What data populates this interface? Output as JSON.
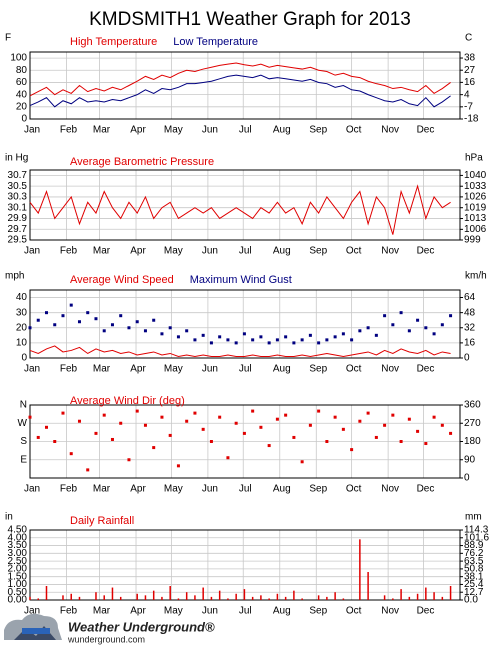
{
  "title": "KMDSMITH1 Weather Graph for 2013",
  "footer": {
    "brand": "Weather Underground®",
    "url": "wunderground.com"
  },
  "chart_data": [
    {
      "type": "line",
      "ylabel": "F",
      "y2label": "C",
      "x": [
        1,
        8,
        15,
        22,
        29,
        36,
        43,
        50,
        57,
        64,
        71,
        78,
        85,
        92,
        99,
        106,
        113,
        120,
        127,
        134,
        141,
        148,
        155,
        162,
        169,
        176,
        183,
        190,
        197,
        204,
        211,
        218,
        225,
        232,
        239,
        246,
        253,
        260,
        267,
        274,
        281,
        288,
        295,
        302,
        309,
        316,
        323,
        330,
        337,
        344,
        351,
        358
      ],
      "xlim": [
        1,
        366
      ],
      "xticks": [
        {
          "value": 1,
          "label": "Jan"
        },
        {
          "value": 32,
          "label": "Feb"
        },
        {
          "value": 60,
          "label": "Mar"
        },
        {
          "value": 91,
          "label": "Apr"
        },
        {
          "value": 121,
          "label": "May"
        },
        {
          "value": 152,
          "label": "Jun"
        },
        {
          "value": 182,
          "label": "Jul"
        },
        {
          "value": 213,
          "label": "Aug"
        },
        {
          "value": 244,
          "label": "Sep"
        },
        {
          "value": 274,
          "label": "Oct"
        },
        {
          "value": 305,
          "label": "Nov"
        },
        {
          "value": 335,
          "label": "Dec"
        }
      ],
      "ylim": [
        0,
        110
      ],
      "yticks": [
        0,
        20,
        40,
        60,
        80,
        100
      ],
      "y2lim": [
        -17.8,
        43.3
      ],
      "y2ticks": [
        {
          "value": -17.8,
          "label": "-18"
        },
        {
          "value": -6.7,
          "label": "-7"
        },
        {
          "value": 4.4,
          "label": "4"
        },
        {
          "value": 15.6,
          "label": "16"
        },
        {
          "value": 26.7,
          "label": "27"
        },
        {
          "value": 37.8,
          "label": "38"
        }
      ],
      "grid": true,
      "series": [
        {
          "name": "High Temperature",
          "color": "#e00000",
          "values": [
            38,
            45,
            52,
            40,
            48,
            42,
            55,
            45,
            50,
            46,
            52,
            48,
            55,
            62,
            70,
            65,
            72,
            68,
            75,
            80,
            78,
            82,
            85,
            88,
            90,
            92,
            89,
            87,
            90,
            85,
            88,
            86,
            84,
            82,
            85,
            80,
            78,
            72,
            75,
            70,
            68,
            62,
            58,
            55,
            50,
            52,
            48,
            45,
            55,
            42,
            50,
            60
          ]
        },
        {
          "name": "Low Temperature",
          "color": "#000080",
          "values": [
            22,
            28,
            35,
            20,
            30,
            25,
            35,
            28,
            30,
            28,
            32,
            30,
            35,
            40,
            48,
            42,
            50,
            48,
            52,
            58,
            58,
            60,
            62,
            66,
            70,
            72,
            70,
            68,
            72,
            66,
            68,
            66,
            64,
            62,
            65,
            60,
            58,
            52,
            55,
            48,
            46,
            40,
            35,
            30,
            28,
            32,
            25,
            22,
            35,
            20,
            28,
            38
          ]
        }
      ]
    },
    {
      "type": "line",
      "ylabel": "in Hg",
      "y2label": "hPa",
      "x": [
        1,
        8,
        15,
        22,
        29,
        36,
        43,
        50,
        57,
        64,
        71,
        78,
        85,
        92,
        99,
        106,
        113,
        120,
        127,
        134,
        141,
        148,
        155,
        162,
        169,
        176,
        183,
        190,
        197,
        204,
        211,
        218,
        225,
        232,
        239,
        246,
        253,
        260,
        267,
        274,
        281,
        288,
        295,
        302,
        309,
        316,
        323,
        330,
        337,
        344,
        351,
        358
      ],
      "xlim": [
        1,
        366
      ],
      "xticks": [
        {
          "value": 1,
          "label": "Jan"
        },
        {
          "value": 32,
          "label": "Feb"
        },
        {
          "value": 60,
          "label": "Mar"
        },
        {
          "value": 91,
          "label": "Apr"
        },
        {
          "value": 121,
          "label": "May"
        },
        {
          "value": 152,
          "label": "Jun"
        },
        {
          "value": 182,
          "label": "Jul"
        },
        {
          "value": 213,
          "label": "Aug"
        },
        {
          "value": 244,
          "label": "Sep"
        },
        {
          "value": 274,
          "label": "Oct"
        },
        {
          "value": 305,
          "label": "Nov"
        },
        {
          "value": 335,
          "label": "Dec"
        }
      ],
      "ylim": [
        29.5,
        30.8
      ],
      "yticks": [
        29.5,
        29.7,
        29.9,
        30.1,
        30.3,
        30.5,
        30.7
      ],
      "y2lim": [
        999.0,
        1043.0
      ],
      "y2ticks": [
        {
          "value": 999.0,
          "label": "999"
        },
        {
          "value": 1005.7,
          "label": "1006"
        },
        {
          "value": 1012.5,
          "label": "1013"
        },
        {
          "value": 1019.3,
          "label": "1019"
        },
        {
          "value": 1026.1,
          "label": "1026"
        },
        {
          "value": 1032.8,
          "label": "1033"
        },
        {
          "value": 1039.6,
          "label": "1040"
        }
      ],
      "grid": true,
      "series": [
        {
          "name": "Average Barometric Pressure",
          "color": "#e00000",
          "values": [
            30.2,
            30.0,
            30.4,
            29.9,
            30.1,
            30.3,
            29.8,
            30.2,
            30.0,
            30.4,
            30.1,
            29.9,
            30.2,
            30.0,
            30.3,
            29.9,
            30.1,
            30.2,
            29.9,
            30.0,
            30.1,
            30.0,
            30.1,
            29.9,
            30.0,
            30.1,
            30.0,
            29.9,
            30.1,
            30.0,
            30.2,
            30.0,
            30.1,
            29.8,
            30.2,
            30.0,
            30.3,
            30.1,
            29.9,
            30.2,
            30.4,
            29.8,
            30.3,
            30.1,
            29.6,
            30.4,
            30.0,
            30.5,
            29.9,
            30.3,
            30.1,
            30.2
          ]
        }
      ]
    },
    {
      "type": "line",
      "ylabel": "mph",
      "y2label": "km/h",
      "x": [
        1,
        8,
        15,
        22,
        29,
        36,
        43,
        50,
        57,
        64,
        71,
        78,
        85,
        92,
        99,
        106,
        113,
        120,
        127,
        134,
        141,
        148,
        155,
        162,
        169,
        176,
        183,
        190,
        197,
        204,
        211,
        218,
        225,
        232,
        239,
        246,
        253,
        260,
        267,
        274,
        281,
        288,
        295,
        302,
        309,
        316,
        323,
        330,
        337,
        344,
        351,
        358
      ],
      "xlim": [
        1,
        366
      ],
      "xticks": [
        {
          "value": 1,
          "label": "Jan"
        },
        {
          "value": 32,
          "label": "Feb"
        },
        {
          "value": 60,
          "label": "Mar"
        },
        {
          "value": 91,
          "label": "Apr"
        },
        {
          "value": 121,
          "label": "May"
        },
        {
          "value": 152,
          "label": "Jun"
        },
        {
          "value": 182,
          "label": "Jul"
        },
        {
          "value": 213,
          "label": "Aug"
        },
        {
          "value": 244,
          "label": "Sep"
        },
        {
          "value": 274,
          "label": "Oct"
        },
        {
          "value": 305,
          "label": "Nov"
        },
        {
          "value": 335,
          "label": "Dec"
        }
      ],
      "ylim": [
        0,
        45
      ],
      "yticks": [
        0,
        10,
        20,
        30,
        40
      ],
      "y2lim": [
        0,
        72.4
      ],
      "y2ticks": [
        0,
        {
          "value": 16.1,
          "label": "16"
        },
        {
          "value": 32.2,
          "label": "32"
        },
        {
          "value": 48.3,
          "label": "48"
        },
        {
          "value": 64.4,
          "label": "64"
        }
      ],
      "grid": true,
      "series": [
        {
          "name": "Average Wind Speed",
          "color": "#e00000",
          "values": [
            5,
            3,
            6,
            8,
            4,
            5,
            7,
            3,
            6,
            4,
            5,
            3,
            4,
            2,
            3,
            4,
            2,
            3,
            1,
            2,
            1,
            2,
            1,
            1,
            2,
            1,
            1,
            2,
            1,
            1,
            2,
            1,
            1,
            2,
            1,
            2,
            3,
            2,
            1,
            2,
            3,
            4,
            2,
            5,
            3,
            6,
            4,
            3,
            5,
            2,
            4,
            3
          ]
        },
        {
          "name": "Maximum Wind Gust",
          "color": "#000080",
          "type": "scatter",
          "values": [
            20,
            25,
            30,
            22,
            28,
            35,
            24,
            30,
            26,
            18,
            22,
            28,
            20,
            24,
            18,
            25,
            16,
            20,
            14,
            18,
            12,
            15,
            10,
            14,
            12,
            10,
            16,
            12,
            14,
            10,
            12,
            14,
            10,
            12,
            15,
            10,
            12,
            14,
            16,
            12,
            18,
            20,
            15,
            28,
            22,
            30,
            18,
            25,
            20,
            16,
            22,
            28
          ]
        }
      ]
    },
    {
      "type": "scatter",
      "x": [
        1,
        8,
        15,
        22,
        29,
        36,
        43,
        50,
        57,
        64,
        71,
        78,
        85,
        92,
        99,
        106,
        113,
        120,
        127,
        134,
        141,
        148,
        155,
        162,
        169,
        176,
        183,
        190,
        197,
        204,
        211,
        218,
        225,
        232,
        239,
        246,
        253,
        260,
        267,
        274,
        281,
        288,
        295,
        302,
        309,
        316,
        323,
        330,
        337,
        344,
        351,
        358
      ],
      "xlim": [
        1,
        366
      ],
      "xticks": [
        {
          "value": 1,
          "label": "Jan"
        },
        {
          "value": 32,
          "label": "Feb"
        },
        {
          "value": 60,
          "label": "Mar"
        },
        {
          "value": 91,
          "label": "Apr"
        },
        {
          "value": 121,
          "label": "May"
        },
        {
          "value": 152,
          "label": "Jun"
        },
        {
          "value": 182,
          "label": "Jul"
        },
        {
          "value": 213,
          "label": "Aug"
        },
        {
          "value": 244,
          "label": "Sep"
        },
        {
          "value": 274,
          "label": "Oct"
        },
        {
          "value": 305,
          "label": "Nov"
        },
        {
          "value": 335,
          "label": "Dec"
        }
      ],
      "ylim": [
        0,
        360
      ],
      "yticks": [
        {
          "value": 90,
          "label": "E"
        },
        {
          "value": 180,
          "label": "S"
        },
        {
          "value": 270,
          "label": "W"
        },
        {
          "value": 360,
          "label": "N"
        }
      ],
      "y2lim": [
        0,
        360
      ],
      "y2ticks": [
        0,
        90,
        180,
        270,
        360
      ],
      "grid": true,
      "series": [
        {
          "name": "Average Wind Dir (deg)",
          "color": "#e00000",
          "values": [
            300,
            200,
            250,
            180,
            320,
            120,
            280,
            40,
            220,
            310,
            190,
            270,
            90,
            330,
            260,
            150,
            300,
            210,
            60,
            280,
            320,
            240,
            180,
            300,
            100,
            270,
            220,
            330,
            250,
            160,
            290,
            310,
            200,
            80,
            260,
            330,
            180,
            300,
            240,
            140,
            280,
            320,
            200,
            260,
            310,
            180,
            290,
            230,
            170,
            300,
            260,
            220
          ]
        }
      ]
    },
    {
      "type": "bar",
      "ylabel": "in",
      "y2label": "mm",
      "x": [
        1,
        8,
        15,
        22,
        29,
        36,
        43,
        50,
        57,
        64,
        71,
        78,
        85,
        92,
        99,
        106,
        113,
        120,
        127,
        134,
        141,
        148,
        155,
        162,
        169,
        176,
        183,
        190,
        197,
        204,
        211,
        218,
        225,
        232,
        239,
        246,
        253,
        260,
        267,
        274,
        281,
        288,
        295,
        302,
        309,
        316,
        323,
        330,
        337,
        344,
        351,
        358
      ],
      "xlim": [
        1,
        366
      ],
      "xticks": [
        {
          "value": 1,
          "label": "Jan"
        },
        {
          "value": 32,
          "label": "Feb"
        },
        {
          "value": 60,
          "label": "Mar"
        },
        {
          "value": 91,
          "label": "Apr"
        },
        {
          "value": 121,
          "label": "May"
        },
        {
          "value": 152,
          "label": "Jun"
        },
        {
          "value": 182,
          "label": "Jul"
        },
        {
          "value": 213,
          "label": "Aug"
        },
        {
          "value": 244,
          "label": "Sep"
        },
        {
          "value": 274,
          "label": "Oct"
        },
        {
          "value": 305,
          "label": "Nov"
        },
        {
          "value": 335,
          "label": "Dec"
        }
      ],
      "ylim": [
        0,
        4.5
      ],
      "yticks": [
        {
          "value": 0,
          "label": "0.00"
        },
        {
          "value": 0.5,
          "label": "0.50"
        },
        {
          "value": 1,
          "label": "1.00"
        },
        {
          "value": 1.5,
          "label": "1.50"
        },
        {
          "value": 2,
          "label": "2.00"
        },
        {
          "value": 2.5,
          "label": "2.50"
        },
        {
          "value": 3,
          "label": "3.00"
        },
        {
          "value": 3.5,
          "label": "3.50"
        },
        {
          "value": 4,
          "label": "4.00"
        },
        {
          "value": 4.5,
          "label": "4.50"
        }
      ],
      "y2lim": [
        0,
        114.3
      ],
      "y2ticks": [
        {
          "value": 0,
          "label": "0.0"
        },
        12.7,
        25.4,
        38.1,
        50.8,
        63.5,
        76.2,
        88.9,
        101.6,
        114.3
      ],
      "grid": true,
      "series": [
        {
          "name": "Daily Rainfall",
          "color": "#e00000",
          "values": [
            0.2,
            0.1,
            0.9,
            0.0,
            0.3,
            0.4,
            0.2,
            0.0,
            0.5,
            0.3,
            0.8,
            0.2,
            0.0,
            0.4,
            0.3,
            0.6,
            0.2,
            0.9,
            0.1,
            0.5,
            0.3,
            0.8,
            0.2,
            0.6,
            0.1,
            0.4,
            0.7,
            0.2,
            0.3,
            0.1,
            0.4,
            0.2,
            0.6,
            0.1,
            0.0,
            0.3,
            0.2,
            0.5,
            0.1,
            0.0,
            3.9,
            1.8,
            0.0,
            0.3,
            0.1,
            0.7,
            0.2,
            0.4,
            0.8,
            0.5,
            0.2,
            0.9
          ]
        }
      ]
    }
  ]
}
